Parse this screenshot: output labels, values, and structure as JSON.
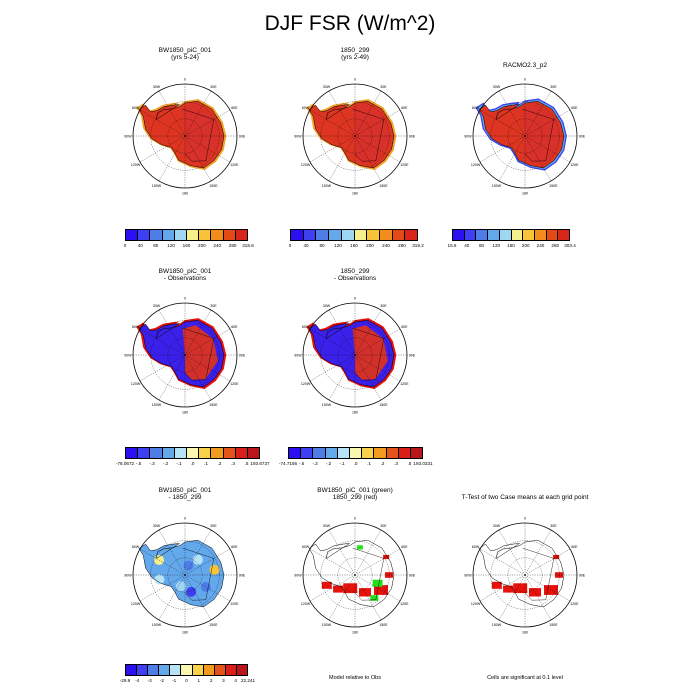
{
  "title": "DJF FSR (W/m^2)",
  "colors": {
    "cool": [
      "#2a0ff0",
      "#3e3ef2",
      "#4f7de8",
      "#64a8ec",
      "#9fd6f2",
      "#f6f08c",
      "#f7c43a",
      "#f28c1c",
      "#e44a16",
      "#d8251a"
    ],
    "diverging": [
      "#2a0ff0",
      "#3e3ef2",
      "#4f7de8",
      "#64a8ec",
      "#b6e3f5",
      "#f9f7b0",
      "#f7d24a",
      "#f19a1e",
      "#e5531a",
      "#d82019",
      "#b9161b"
    ],
    "ice_red": "#dd3522",
    "shelf_orange": "#f2a12a",
    "blue_low": "#3a20e8",
    "green": "#22e01a",
    "sig_red": "#e8120c"
  },
  "chart_data": [
    {
      "type": "heatmap",
      "id": "p1",
      "title_lines": [
        "BW1850_piC_001",
        "(yrs 5-24)"
      ],
      "colorbar": [
        "0",
        "40",
        "80",
        "120",
        "160",
        "200",
        "240",
        "280",
        "318.6"
      ]
    },
    {
      "type": "heatmap",
      "id": "p2",
      "title_lines": [
        "1850_299",
        "(yrs 2-49)"
      ],
      "colorbar": [
        "0",
        "40",
        "80",
        "120",
        "160",
        "200",
        "240",
        "280",
        "319.2"
      ]
    },
    {
      "type": "heatmap",
      "id": "p3",
      "title_lines": [
        "RACMO2.3_p2"
      ],
      "colorbar": [
        "15.6",
        "40",
        "80",
        "120",
        "160",
        "200",
        "240",
        "280",
        "303.4"
      ]
    },
    {
      "type": "heatmap",
      "id": "p4",
      "title_lines": [
        "BW1850_piC_001",
        "- Observations"
      ],
      "colorbar": [
        "-78.0672",
        "-.5",
        "-.3",
        "-.2",
        "-.1",
        ".0",
        ".1",
        ".2",
        ".3",
        ".5",
        "193.6737"
      ]
    },
    {
      "type": "heatmap",
      "id": "p5",
      "title_lines": [
        "1850_299",
        "- Observations"
      ],
      "colorbar": [
        "-74.7156",
        "-.5",
        "-.3",
        "-.2",
        "-.1",
        ".0",
        ".1",
        ".2",
        ".3",
        ".5",
        "193.0331"
      ]
    },
    {
      "type": "heatmap",
      "id": "p6",
      "title_lines": [
        "BW1850_piC_001",
        "- 1850_299"
      ],
      "colorbar": [
        "-29.9",
        "-4",
        "-3",
        "-2",
        "-1",
        "0",
        "1",
        "2",
        "3",
        "4",
        "22.241"
      ]
    },
    {
      "type": "heatmap",
      "id": "p7",
      "title_lines": [
        "BW1850_piC_001 (green)",
        "1850_299 (red)"
      ],
      "note": "Model relative to Obs"
    },
    {
      "type": "heatmap",
      "id": "p8",
      "title_lines": [
        "T-Test of two Case means at each grid point"
      ],
      "note": "Cells are significant at 0.1 level"
    }
  ],
  "map_labels": {
    "top": "0",
    "bottom": "180",
    "left": "90W",
    "right": "90E",
    "upper_left": [
      "30W",
      "60W"
    ],
    "upper_right": [
      "30E",
      "60E"
    ],
    "lower_left": [
      "120W",
      "150W"
    ],
    "lower_right": [
      "120E",
      "150E"
    ]
  }
}
